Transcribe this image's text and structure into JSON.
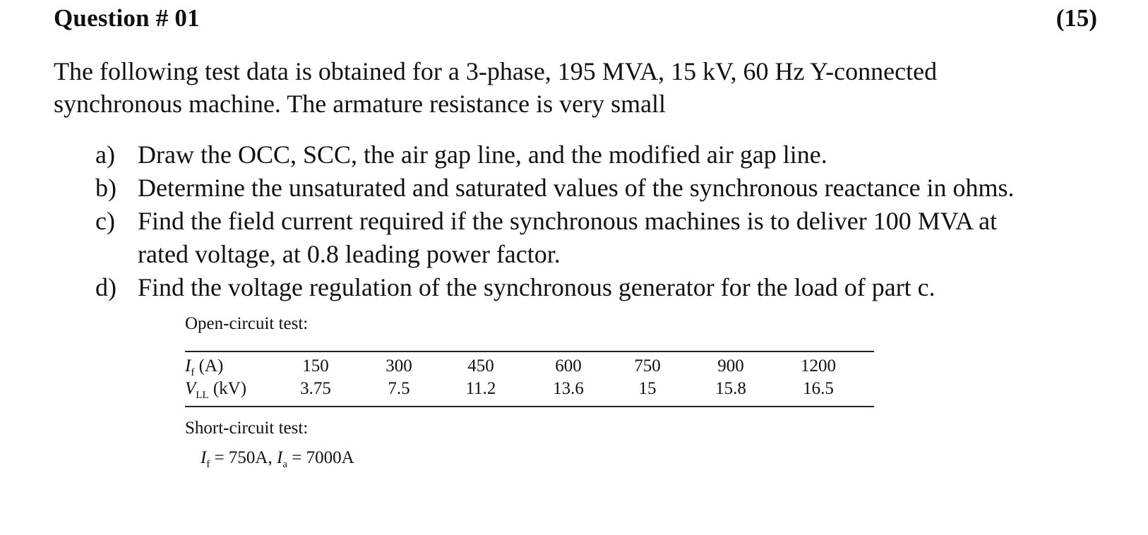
{
  "question": {
    "title": "Question # 01",
    "marks": "(15)"
  },
  "intro": {
    "line1": "The following test data is obtained for a 3-phase, 195 MVA, 15 kV, 60 Hz Y-connected",
    "line2": "synchronous machine. The armature resistance is very small"
  },
  "parts": [
    {
      "label": "a)",
      "lines": [
        "Draw the OCC, SCC, the air gap line, and the modified air gap line."
      ]
    },
    {
      "label": "b)",
      "lines": [
        "Determine the unsaturated and saturated values of the synchronous reactance in ohms."
      ]
    },
    {
      "label": "c)",
      "lines": [
        "Find the field current required if the synchronous machines is to deliver 100 MVA at",
        "rated voltage, at 0.8 leading power factor."
      ]
    },
    {
      "label": "d)",
      "lines": [
        "Find the voltage regulation of the synchronous generator for the load of part c."
      ]
    }
  ],
  "open_circuit": {
    "title": "Open-circuit test:",
    "row1_symbol": "I",
    "row1_sub": "f",
    "row1_unit": " (A)",
    "row2_symbol": "V",
    "row2_sub": "LL",
    "row2_unit": " (kV)",
    "if_values": [
      "150",
      "300",
      "450",
      "600",
      "750",
      "900",
      "1200"
    ],
    "vll_values": [
      "3.75",
      "7.5",
      "11.2",
      "13.6",
      "15",
      "15.8",
      "16.5"
    ]
  },
  "short_circuit": {
    "title": "Short-circuit test:",
    "sym1": "I",
    "sub1": "f",
    "val1": " = 750A, ",
    "sym2": "I",
    "sub2": "a",
    "val2": " = 7000A"
  }
}
